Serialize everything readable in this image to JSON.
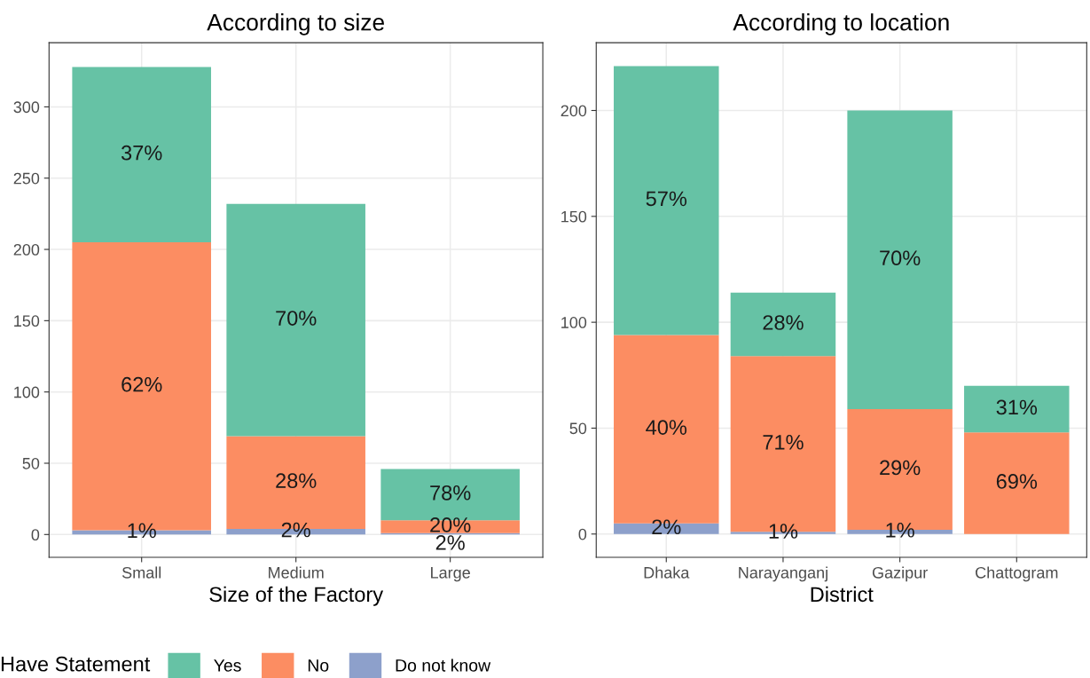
{
  "chart_data": [
    {
      "type": "bar",
      "stacked": true,
      "title": "According to size",
      "xlabel": "Size of the Factory",
      "categories": [
        "Small",
        "Medium",
        "Large"
      ],
      "ylim": [
        -16,
        345
      ],
      "yticks": [
        0,
        50,
        100,
        150,
        200,
        250,
        300
      ],
      "grid": true,
      "legend": "bottom",
      "legend_title": "Have Statement",
      "series": [
        {
          "name": "Do not know",
          "color": "#8da0cb",
          "values": [
            3,
            4,
            1
          ]
        },
        {
          "name": "No",
          "color": "#fc8d62",
          "values": [
            202,
            65,
            9
          ]
        },
        {
          "name": "Yes",
          "color": "#66c2a5",
          "values": [
            123,
            163,
            36
          ]
        }
      ],
      "annotations": [
        "1%",
        "62%",
        "37%",
        "2%",
        "28%",
        "70%",
        "2%",
        "20%",
        "78%"
      ]
    },
    {
      "type": "bar",
      "stacked": true,
      "title": "According to location",
      "xlabel": "District",
      "categories": [
        "Dhaka",
        "Narayanganj",
        "Gazipur",
        "Chattogram"
      ],
      "ylim": [
        -11,
        232
      ],
      "yticks": [
        0,
        50,
        100,
        150,
        200
      ],
      "grid": true,
      "series": [
        {
          "name": "Do not know",
          "color": "#8da0cb",
          "values": [
            5,
            1,
            2,
            0
          ]
        },
        {
          "name": "No",
          "color": "#fc8d62",
          "values": [
            89,
            83,
            57,
            48
          ]
        },
        {
          "name": "Yes",
          "color": "#66c2a5",
          "values": [
            127,
            30,
            141,
            22
          ]
        }
      ],
      "annotations": [
        "2%",
        "40%",
        "57%",
        "1%",
        "71%",
        "28%",
        "1%",
        "29%",
        "70%",
        "69%",
        "31%"
      ]
    }
  ]
}
